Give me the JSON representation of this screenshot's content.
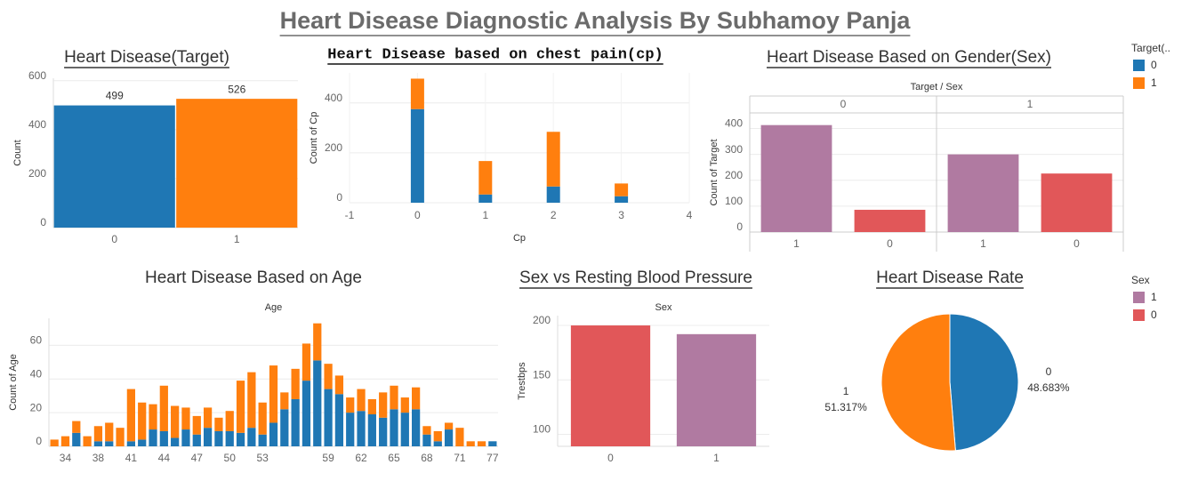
{
  "title": "Heart Disease Diagnostic Analysis By Subhamoy Panja",
  "legends": [
    {
      "title": "Target(..",
      "items": [
        {
          "label": "0",
          "color": "#1f77b4"
        },
        {
          "label": "1",
          "color": "#ff7f0e"
        }
      ]
    },
    {
      "title": "Sex",
      "items": [
        {
          "label": "1",
          "color": "#b07aa1"
        },
        {
          "label": "0",
          "color": "#e15759"
        }
      ]
    }
  ],
  "chart_data": [
    {
      "type": "bar",
      "title": "Heart Disease(Target)",
      "y_label": "Count",
      "categories": [
        "0",
        "1"
      ],
      "values": [
        499,
        526
      ],
      "colors": [
        "#1f77b4",
        "#ff7f0e"
      ],
      "show_values": true,
      "ylim": [
        0,
        610
      ],
      "yticks": [
        0,
        200,
        400,
        600
      ],
      "grid": true
    },
    {
      "type": "bar",
      "title": "Heart Disease based on chest pain(cp)",
      "x_label": "Cp",
      "y_label": "Count of Cp",
      "stacked": true,
      "x": [
        0,
        1,
        2,
        3
      ],
      "series": [
        {
          "name": "0",
          "color": "#1f77b4",
          "values": [
            375,
            33,
            65,
            26
          ]
        },
        {
          "name": "1",
          "color": "#ff7f0e",
          "values": [
            122,
            134,
            219,
            51
          ]
        }
      ],
      "xlim": [
        -1,
        4
      ],
      "xticks": [
        -1,
        0,
        1,
        2,
        3,
        4
      ],
      "ylim": [
        0,
        520
      ],
      "yticks": [
        0,
        200,
        400
      ],
      "grid": true
    },
    {
      "type": "bar",
      "title": "Heart Disease Based on Gender(Sex)",
      "header": "Target / Sex",
      "y_label": "Count of Target",
      "groups": [
        {
          "name": "0",
          "categories": [
            "1",
            "0"
          ],
          "values": [
            413,
            86
          ],
          "colors": [
            "#b07aa1",
            "#e15759"
          ]
        },
        {
          "name": "1",
          "categories": [
            "1",
            "0"
          ],
          "values": [
            300,
            226
          ],
          "colors": [
            "#b07aa1",
            "#e15759"
          ]
        }
      ],
      "ylim": [
        0,
        460
      ],
      "yticks": [
        0,
        100,
        200,
        300,
        400
      ],
      "grid": true
    },
    {
      "type": "bar",
      "title": "Heart Disease Based on Age",
      "header": "Age",
      "y_label": "Count of Age",
      "stacked": true,
      "categories": [
        null,
        "34",
        null,
        null,
        "38",
        null,
        null,
        "41",
        null,
        null,
        "44",
        null,
        null,
        "47",
        null,
        null,
        "50",
        null,
        null,
        "53",
        null,
        null,
        null,
        null,
        null,
        "59",
        null,
        null,
        "62",
        null,
        null,
        "65",
        null,
        null,
        "68",
        null,
        null,
        "71",
        null,
        null,
        "77"
      ],
      "series": [
        {
          "name": "0",
          "color": "#1f77b4",
          "values": [
            0,
            0,
            8,
            0,
            3,
            3,
            0,
            3,
            4,
            10,
            9,
            5,
            10,
            7,
            11,
            9,
            9,
            8,
            11,
            7,
            14,
            22,
            28,
            39,
            51,
            34,
            31,
            20,
            21,
            19,
            17,
            22,
            20,
            22,
            7,
            3,
            10,
            0,
            0,
            0,
            3
          ]
        },
        {
          "name": "1",
          "color": "#ff7f0e",
          "values": [
            4,
            6,
            7,
            6,
            9,
            11,
            11,
            31,
            22,
            15,
            27,
            19,
            13,
            11,
            12,
            8,
            12,
            31,
            33,
            19,
            34,
            10,
            18,
            22,
            22,
            15,
            11,
            9,
            13,
            9,
            15,
            14,
            9,
            13,
            5,
            6,
            4,
            11,
            3,
            3,
            0
          ]
        }
      ],
      "ylim": [
        0,
        76
      ],
      "yticks": [
        0,
        20,
        40,
        60
      ],
      "grid": true
    },
    {
      "type": "bar",
      "title": "Sex vs Resting Blood Pressure",
      "header": "Sex",
      "y_label": "Trestbps",
      "categories": [
        "0",
        "1"
      ],
      "values": [
        200,
        192
      ],
      "colors": [
        "#e15759",
        "#b07aa1"
      ],
      "ylim": [
        89,
        209
      ],
      "yticks": [
        100,
        150,
        200
      ],
      "grid": true
    },
    {
      "type": "pie",
      "title": "Heart Disease Rate",
      "categories": [
        "0",
        "1"
      ],
      "values": [
        48.683,
        51.317
      ],
      "value_labels": [
        "48.683%",
        "51.317%"
      ],
      "colors": [
        "#1f77b4",
        "#ff7f0e"
      ]
    }
  ]
}
